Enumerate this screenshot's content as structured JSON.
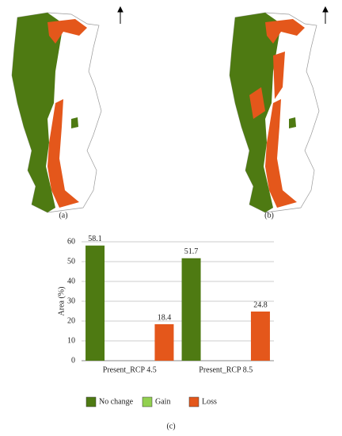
{
  "panels": [
    "(a)",
    "(b)"
  ],
  "chart_data": {
    "type": "bar",
    "panel_label": "(c)",
    "ylabel": "Area (%)",
    "categories": [
      "Present_RCP 4.5",
      "Present_RCP 8.5"
    ],
    "series": [
      {
        "name": "No change",
        "color": "#4e7a12",
        "values": [
          58.1,
          51.7
        ]
      },
      {
        "name": "Gain",
        "color": "#92d050",
        "values": [
          0,
          0
        ]
      },
      {
        "name": "Loss",
        "color": "#e4571b",
        "values": [
          18.4,
          24.8
        ]
      }
    ],
    "ylim": [
      0,
      60
    ],
    "yticks": [
      0,
      10,
      20,
      30,
      40,
      50,
      60
    ],
    "grid": true
  }
}
